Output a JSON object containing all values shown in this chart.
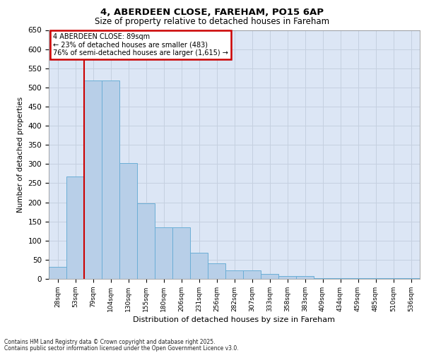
{
  "title_line1": "4, ABERDEEN CLOSE, FAREHAM, PO15 6AP",
  "title_line2": "Size of property relative to detached houses in Fareham",
  "xlabel": "Distribution of detached houses by size in Fareham",
  "ylabel": "Number of detached properties",
  "categories": [
    "28sqm",
    "53sqm",
    "79sqm",
    "104sqm",
    "130sqm",
    "155sqm",
    "180sqm",
    "206sqm",
    "231sqm",
    "256sqm",
    "282sqm",
    "307sqm",
    "333sqm",
    "358sqm",
    "383sqm",
    "409sqm",
    "434sqm",
    "459sqm",
    "485sqm",
    "510sqm",
    "536sqm"
  ],
  "values": [
    32,
    267,
    518,
    518,
    303,
    198,
    134,
    134,
    68,
    40,
    22,
    22,
    13,
    7,
    7,
    2,
    1,
    1,
    1,
    1,
    2
  ],
  "bar_color": "#b8cfe8",
  "bar_edge_color": "#6baed6",
  "red_line_x": 1.5,
  "annotation_text_line1": "4 ABERDEEN CLOSE: 89sqm",
  "annotation_text_line2": "← 23% of detached houses are smaller (483)",
  "annotation_text_line3": "76% of semi-detached houses are larger (1,615) →",
  "annotation_box_edge_color": "#cc0000",
  "red_line_color": "#cc0000",
  "ylim_max": 650,
  "yticks": [
    0,
    50,
    100,
    150,
    200,
    250,
    300,
    350,
    400,
    450,
    500,
    550,
    600,
    650
  ],
  "grid_color": "#c5d0e0",
  "plot_bg_color": "#dce6f5",
  "footnote1": "Contains HM Land Registry data © Crown copyright and database right 2025.",
  "footnote2": "Contains public sector information licensed under the Open Government Licence v3.0."
}
